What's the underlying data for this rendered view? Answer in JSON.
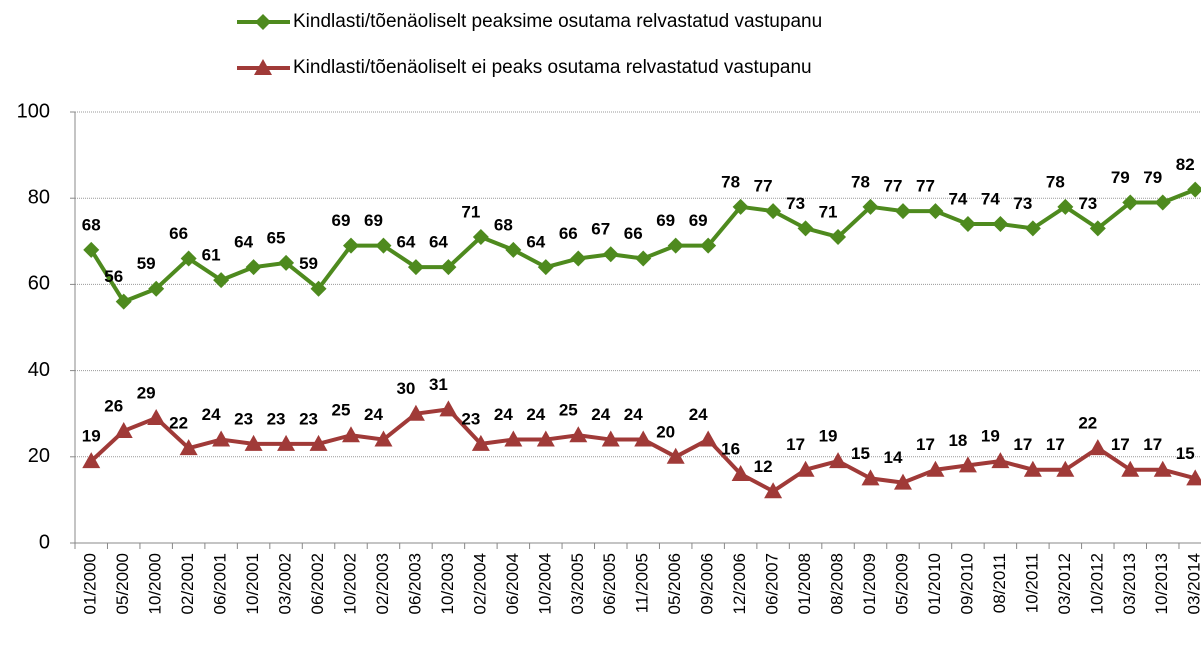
{
  "chart_data": {
    "type": "line",
    "categories": [
      "01/2000",
      "05/2000",
      "10/2000",
      "02/2001",
      "06/2001",
      "10/2001",
      "03/2002",
      "06/2002",
      "10/2002",
      "02/2003",
      "06/2003",
      "10/2003",
      "02/2004",
      "06/2004",
      "10/2004",
      "03/2005",
      "06/2005",
      "11/2005",
      "05/2006",
      "09/2006",
      "12/2006",
      "06/2007",
      "01/2008",
      "08/2008",
      "01/2009",
      "05/2009",
      "01/2010",
      "09/2010",
      "08/2011",
      "10/2011",
      "03/2012",
      "10/2012",
      "03/2013",
      "10/2013",
      "03/2014"
    ],
    "series": [
      {
        "name": "Kindlasti/tõenäoliselt peaksime osutama relvastatud vastupanu",
        "color": "#4e8a1e",
        "marker": "diamond",
        "values": [
          68,
          56,
          59,
          66,
          61,
          64,
          65,
          59,
          69,
          69,
          64,
          64,
          71,
          68,
          64,
          66,
          67,
          66,
          69,
          69,
          78,
          77,
          73,
          71,
          78,
          77,
          77,
          74,
          74,
          73,
          78,
          73,
          79,
          79,
          82
        ]
      },
      {
        "name": "Kindlasti/tõenäoliselt ei peaks osutama relvastatud vastupanu",
        "color": "#a03a38",
        "marker": "triangle",
        "values": [
          19,
          26,
          29,
          22,
          24,
          23,
          23,
          23,
          25,
          24,
          30,
          31,
          23,
          24,
          24,
          25,
          24,
          24,
          20,
          24,
          16,
          12,
          17,
          19,
          15,
          14,
          17,
          18,
          19,
          17,
          17,
          22,
          17,
          17,
          15
        ]
      }
    ],
    "ylim": [
      0,
      100
    ],
    "yticks": [
      0,
      20,
      40,
      60,
      80,
      100
    ],
    "grid": true,
    "legend": "top"
  }
}
